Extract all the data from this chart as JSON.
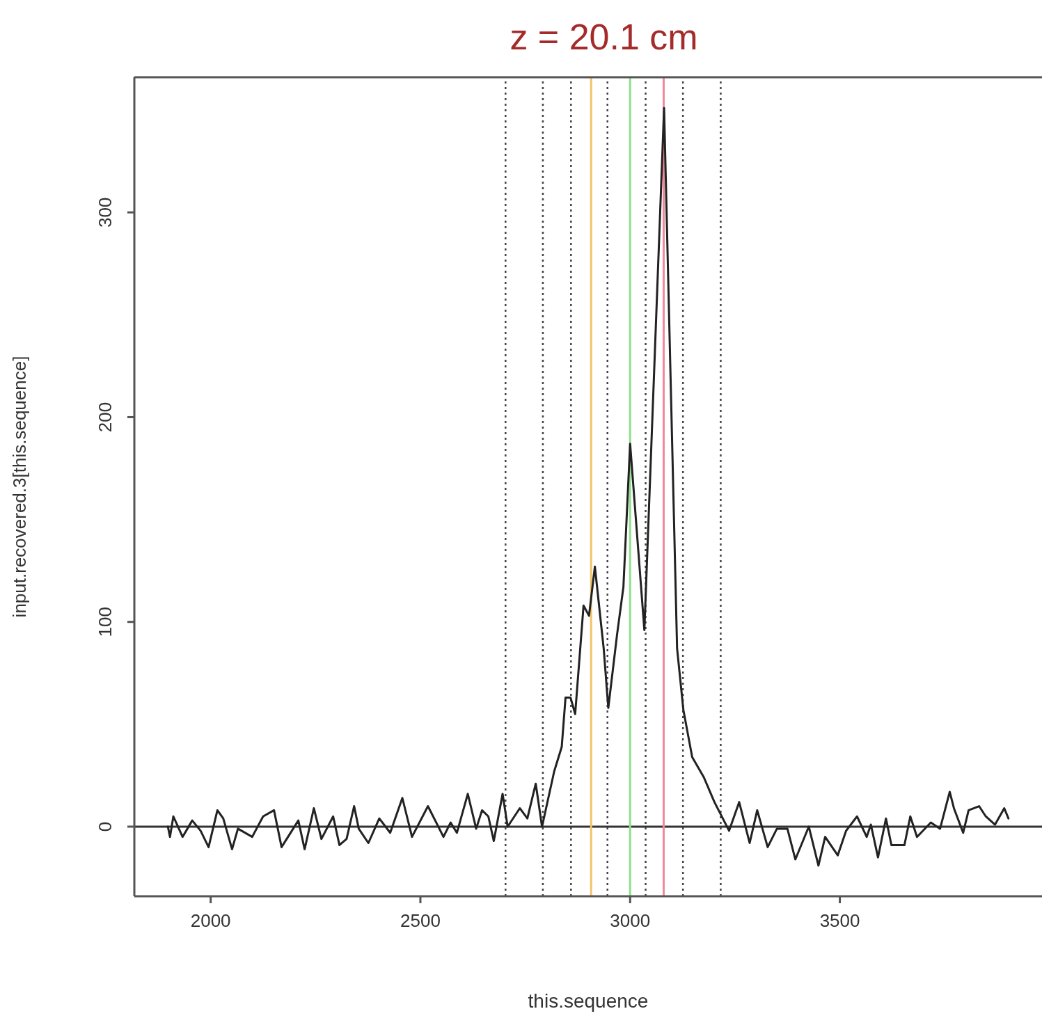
{
  "chart_data": {
    "type": "line",
    "title": "z = 20.1 cm",
    "xlabel": "this.sequence",
    "ylabel": "input.recovered.3[this.sequence]",
    "xlim": [
      1818,
      3982
    ],
    "xticks": [
      2000,
      2500,
      3000,
      3500
    ],
    "ylim": [
      -34,
      366
    ],
    "yticks": [
      0,
      100,
      200,
      300
    ],
    "grid": false,
    "legend": false,
    "marker": "none",
    "line_style": "solid",
    "series": [
      {
        "color": "#222222",
        "x": [
          1898,
          1903,
          1911,
          1933,
          1956,
          1976,
          1995,
          2016,
          2030,
          2051,
          2065,
          2099,
          2125,
          2151,
          2169,
          2209,
          2224,
          2246,
          2264,
          2292,
          2307,
          2324,
          2342,
          2353,
          2376,
          2402,
          2428,
          2457,
          2480,
          2518,
          2555,
          2572,
          2587,
          2613,
          2633,
          2647,
          2662,
          2675,
          2696,
          2708,
          2737,
          2755,
          2775,
          2790,
          2819,
          2837,
          2846,
          2858,
          2869,
          2889,
          2902,
          2916,
          2937,
          2948,
          2969,
          2984,
          3000,
          3034,
          3081,
          3112,
          3127,
          3148,
          3176,
          3201,
          3236,
          3260,
          3285,
          3303,
          3328,
          3350,
          3375,
          3394,
          3426,
          3449,
          3465,
          3495,
          3515,
          3541,
          3564,
          3574,
          3591,
          3610,
          3623,
          3654,
          3668,
          3684,
          3717,
          3739,
          3762,
          3772,
          3794,
          3807,
          3832,
          3848,
          3870,
          3892,
          3902
        ],
        "values": [
          0,
          -5,
          5,
          -5,
          3,
          -2,
          -10,
          8,
          4,
          -11,
          -1,
          -5,
          5,
          8,
          -10,
          3,
          -11,
          9,
          -6,
          5,
          -9,
          -6,
          10,
          -1,
          -8,
          4,
          -3,
          14,
          -5,
          10,
          -5,
          2,
          -3,
          16,
          -1,
          8,
          5,
          -7,
          16,
          0,
          9,
          4,
          21,
          0,
          27,
          39,
          63,
          63,
          55,
          108,
          103,
          127,
          87,
          58,
          94,
          117,
          187,
          96,
          351,
          87,
          57,
          34,
          24,
          12,
          -2,
          12,
          -8,
          8,
          -10,
          -1,
          -1,
          -16,
          0,
          -19,
          -5,
          -14,
          -2,
          5,
          -5,
          1,
          -15,
          4,
          -9,
          -9,
          5,
          -5,
          2,
          -1,
          17,
          9,
          -3,
          8,
          10,
          5,
          1,
          9,
          4
        ]
      }
    ],
    "ref_lines": [
      {
        "axis": "y",
        "value": 0,
        "color": "#333333",
        "line_style": "solid"
      },
      {
        "axis": "x",
        "value": 2703,
        "color": "#444444",
        "line_style": "dotted"
      },
      {
        "axis": "x",
        "value": 2792,
        "color": "#444444",
        "line_style": "dotted"
      },
      {
        "axis": "x",
        "value": 2859,
        "color": "#444444",
        "line_style": "dotted"
      },
      {
        "axis": "x",
        "value": 2946,
        "color": "#444444",
        "line_style": "dotted"
      },
      {
        "axis": "x",
        "value": 3037,
        "color": "#444444",
        "line_style": "dotted"
      },
      {
        "axis": "x",
        "value": 3126,
        "color": "#444444",
        "line_style": "dotted"
      },
      {
        "axis": "x",
        "value": 3216,
        "color": "#444444",
        "line_style": "dotted"
      },
      {
        "axis": "x",
        "value": 2907,
        "color": "#f2c46a",
        "line_style": "solid"
      },
      {
        "axis": "x",
        "value": 3000,
        "color": "#8fe08f",
        "line_style": "solid"
      },
      {
        "axis": "x",
        "value": 3080,
        "color": "#f08a9a",
        "line_style": "solid"
      }
    ]
  }
}
